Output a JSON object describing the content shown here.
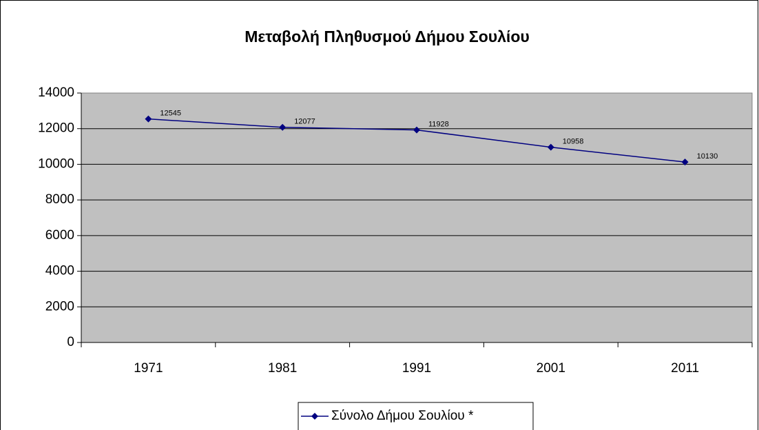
{
  "chart_data": {
    "type": "line",
    "title": "Μεταβολή Πληθυσμού Δήμου Σουλίου",
    "categories": [
      "1971",
      "1981",
      "1991",
      "2001",
      "2011"
    ],
    "series": [
      {
        "name": "Σύνολο Δήμου Σουλίου *",
        "color": "#000080",
        "values": [
          12545,
          12077,
          11928,
          10958,
          10130
        ]
      }
    ],
    "ylim": [
      0,
      14000
    ],
    "yticks": [
      0,
      2000,
      4000,
      6000,
      8000,
      10000,
      12000,
      14000
    ],
    "grid": true,
    "legend": "bottom",
    "plot_background": "#c0c0c0"
  }
}
